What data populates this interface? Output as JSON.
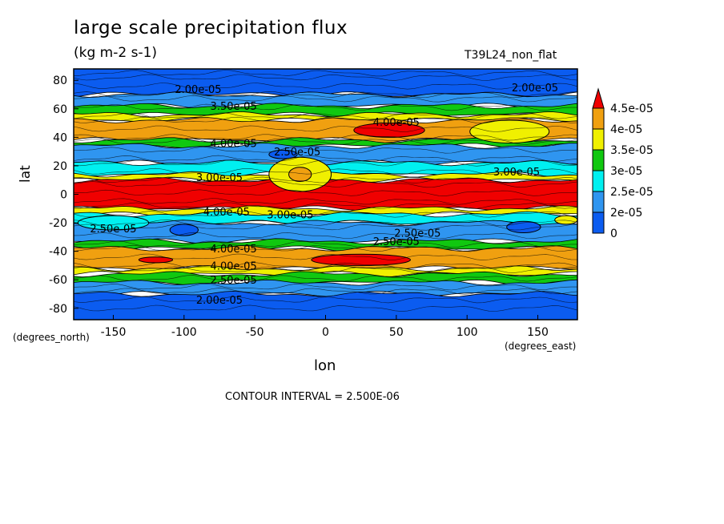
{
  "chart_data": {
    "type": "heatmap",
    "title": "large scale precipitation flux",
    "units": "(kg m-2 s-1)",
    "run_label": "T39L24_non_flat",
    "xlabel": "lon",
    "ylabel": "lat",
    "x_units_note": "(degrees_east)",
    "y_units_note": "(degrees_north)",
    "contour_interval": "CONTOUR INTERVAL = 2.500E-06",
    "xlim": [
      -178,
      178
    ],
    "ylim": [
      -88,
      88
    ],
    "x_ticks": [
      -150,
      -100,
      -50,
      0,
      50,
      100,
      150
    ],
    "y_ticks": [
      -80,
      -60,
      -40,
      -20,
      0,
      20,
      40,
      60,
      80
    ],
    "colorbar": {
      "levels": [
        0,
        2e-05,
        2.5e-05,
        3e-05,
        3.5e-05,
        4e-05,
        4.5e-05
      ],
      "labels": [
        "0",
        "2e-05",
        "2.5e-05",
        "3e-05",
        "3.5e-05",
        "4e-05",
        "4.5e-05"
      ],
      "colors": [
        "#0b5cf0",
        "#2f95f0",
        "#00f0f0",
        "#10c810",
        "#f0f000",
        "#f0a010",
        "#f00000"
      ]
    },
    "zonal_bands": [
      {
        "lat_from": 70,
        "lat_to": 88,
        "value": 1.5e-05
      },
      {
        "lat_from": 62,
        "lat_to": 70,
        "value": 2.2e-05
      },
      {
        "lat_from": 56,
        "lat_to": 62,
        "value": 3.2e-05
      },
      {
        "lat_from": 52,
        "lat_to": 56,
        "value": 3.7e-05
      },
      {
        "lat_from": 38,
        "lat_to": 52,
        "value": 4.2e-05
      },
      {
        "lat_from": 34,
        "lat_to": 38,
        "value": 3.2e-05
      },
      {
        "lat_from": 22,
        "lat_to": 34,
        "value": 2.3e-05
      },
      {
        "lat_from": 14,
        "lat_to": 22,
        "value": 2.7e-05
      },
      {
        "lat_from": 10,
        "lat_to": 14,
        "value": 3.7e-05
      },
      {
        "lat_from": -10,
        "lat_to": 10,
        "value": 4.8e-05
      },
      {
        "lat_from": -14,
        "lat_to": -10,
        "value": 3.7e-05
      },
      {
        "lat_from": -20,
        "lat_to": -14,
        "value": 2.7e-05
      },
      {
        "lat_from": -33,
        "lat_to": -20,
        "value": 2.2e-05
      },
      {
        "lat_from": -38,
        "lat_to": -33,
        "value": 3.2e-05
      },
      {
        "lat_from": -52,
        "lat_to": -38,
        "value": 4.2e-05
      },
      {
        "lat_from": -56,
        "lat_to": -52,
        "value": 3.7e-05
      },
      {
        "lat_from": -62,
        "lat_to": -56,
        "value": 3.2e-05
      },
      {
        "lat_from": -70,
        "lat_to": -62,
        "value": 2.2e-05
      },
      {
        "lat_from": -88,
        "lat_to": -70,
        "value": 1.5e-05
      }
    ],
    "features": [
      {
        "lon": -18,
        "lat": 14,
        "rx": 22,
        "ry": 12,
        "value": 3.7e-05
      },
      {
        "lon": -18,
        "lat": 14,
        "rx": 8,
        "ry": 5,
        "value": 4.2e-05
      },
      {
        "lon": 45,
        "lat": 45,
        "rx": 25,
        "ry": 5,
        "value": 4.8e-05
      },
      {
        "lon": 130,
        "lat": 44,
        "rx": 28,
        "ry": 8,
        "value": 3.7e-05
      },
      {
        "lon": -120,
        "lat": -46,
        "rx": 12,
        "ry": 2,
        "value": 4.8e-05
      },
      {
        "lon": 25,
        "lat": -46,
        "rx": 35,
        "ry": 4,
        "value": 4.8e-05
      },
      {
        "lon": -100,
        "lat": -25,
        "rx": 10,
        "ry": 4,
        "value": 1.5e-05
      },
      {
        "lon": 140,
        "lat": -23,
        "rx": 12,
        "ry": 4,
        "value": 1.5e-05
      },
      {
        "lon": -30,
        "lat": 28,
        "rx": 10,
        "ry": 3,
        "value": 1.5e-05
      },
      {
        "lon": -150,
        "lat": -20,
        "rx": 25,
        "ry": 5,
        "value": 2.7e-05
      },
      {
        "lon": 170,
        "lat": -18,
        "rx": 8,
        "ry": 3,
        "value": 3.7e-05
      }
    ],
    "contour_labels": [
      {
        "text": "2.00e-05",
        "lon": -90,
        "lat": 74
      },
      {
        "text": "2.00e-05",
        "lon": 148,
        "lat": 75
      },
      {
        "text": "3.50e-05",
        "lon": -65,
        "lat": 62
      },
      {
        "text": "4.00e-05",
        "lon": 50,
        "lat": 51
      },
      {
        "text": "4.00e-05",
        "lon": -65,
        "lat": 36
      },
      {
        "text": "2.50e-05",
        "lon": -20,
        "lat": 30
      },
      {
        "text": "3.00e-05",
        "lon": -75,
        "lat": 12
      },
      {
        "text": "3.00e-05",
        "lon": 135,
        "lat": 16
      },
      {
        "text": "4.00e-05",
        "lon": -70,
        "lat": -12
      },
      {
        "text": "3.00e-05",
        "lon": -25,
        "lat": -14
      },
      {
        "text": "2.50e-05",
        "lon": -150,
        "lat": -24
      },
      {
        "text": "2.50e-05",
        "lon": 65,
        "lat": -27
      },
      {
        "text": "2.50e-05",
        "lon": 50,
        "lat": -33
      },
      {
        "text": "4.00e-05",
        "lon": -65,
        "lat": -38
      },
      {
        "text": "4.00e-05",
        "lon": -65,
        "lat": -50
      },
      {
        "text": "2.50e-05",
        "lon": -65,
        "lat": -60
      },
      {
        "text": "2.00e-05",
        "lon": -75,
        "lat": -74
      }
    ]
  }
}
